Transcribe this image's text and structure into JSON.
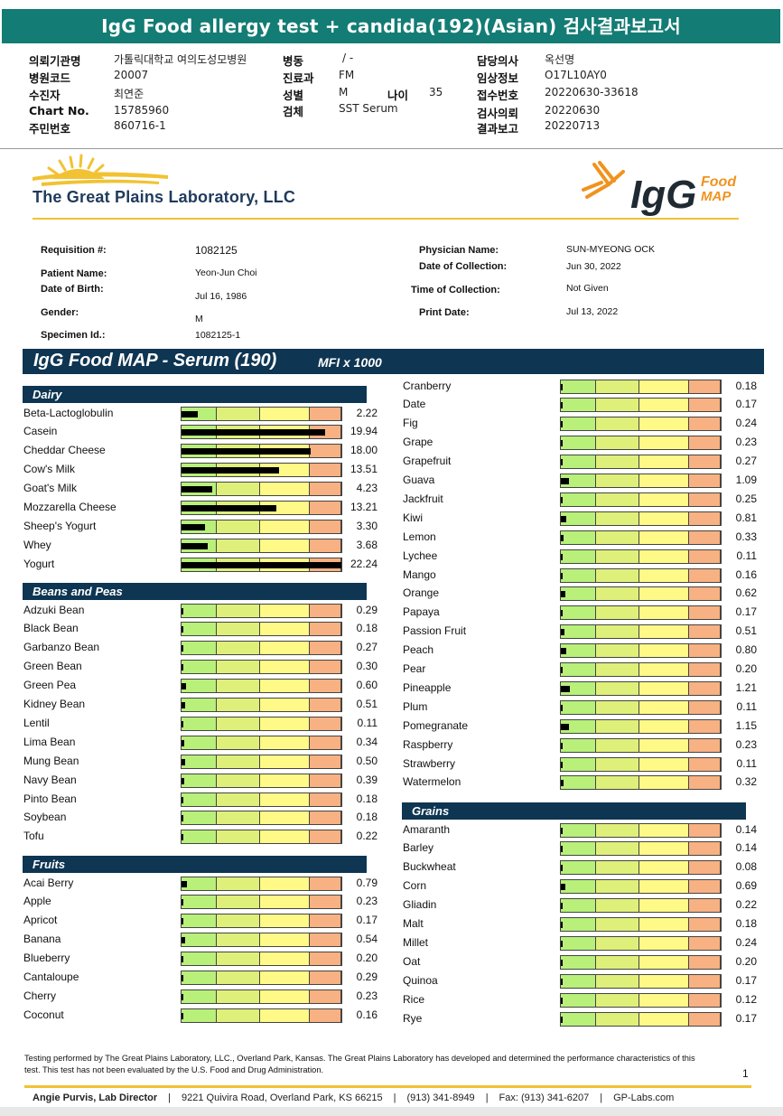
{
  "title": "IgG Food allergy test + candida(192)(Asian) 검사결과보고서",
  "header": {
    "left": [
      {
        "label": "의뢰기관명",
        "value": "가톨릭대학교 여의도성모병원"
      },
      {
        "label": "병원코드",
        "value": "20007"
      },
      {
        "label": "수진자",
        "value": "최연준"
      },
      {
        "label": "Chart No.",
        "value": "15785960"
      },
      {
        "label": "주민번호",
        "value": "860716-1"
      }
    ],
    "mid": [
      {
        "label": "병동",
        "value": "/ -"
      },
      {
        "label": "진료과",
        "value": "FM"
      },
      {
        "label": "성별",
        "value": "M"
      },
      {
        "label": "검체",
        "value": "SST Serum"
      }
    ],
    "age": {
      "label": "나이",
      "value": "35"
    },
    "right": [
      {
        "label": "담당의사",
        "value": "옥선명"
      },
      {
        "label": "임상정보",
        "value": "O17L10AY0"
      },
      {
        "label": "접수번호",
        "value": "20220630-33618"
      },
      {
        "label": "검사의뢰",
        "value": "20220630"
      },
      {
        "label": "결과보고",
        "value": "20220713"
      }
    ]
  },
  "lab": {
    "name": "The Great Plains Laboratory, LLC",
    "logo_right_main": "IgG",
    "logo_right_sub1": "Food",
    "logo_right_sub2": "MAP"
  },
  "patient": {
    "requisition_label": "Requisition #:",
    "requisition": "1082125",
    "patient_name_label": "Patient Name:",
    "patient_name": "Yeon-Jun Choi",
    "dob_label": "Date of Birth:",
    "dob": "Jul 16, 1986",
    "gender_label": "Gender:",
    "gender": "M",
    "specimen_label": "Specimen Id.:",
    "specimen": "1082125-1",
    "physician_label": "Physician Name:",
    "physician": "SUN-MYEONG OCK",
    "collection_date_label": "Date of Collection:",
    "collection_date": "Jun 30, 2022",
    "collection_time_label": "Time of Collection:",
    "collection_time": "Not Given",
    "print_date_label": "Print Date:",
    "print_date": "Jul 13, 2022"
  },
  "panel": {
    "title": "IgG Food MAP - Serum (190)",
    "unit": "MFI x 1000"
  },
  "chart_data": {
    "type": "bar",
    "title": "IgG Food MAP - Serum (190)",
    "unit": "MFI x 1000",
    "scale_max": 22.24,
    "sections": [
      {
        "name": "Dairy",
        "items": [
          {
            "name": "Beta-Lactoglobulin",
            "value": 2.22
          },
          {
            "name": "Casein",
            "value": 19.94
          },
          {
            "name": "Cheddar Cheese",
            "value": 18.0
          },
          {
            "name": "Cow's Milk",
            "value": 13.51
          },
          {
            "name": "Goat's Milk",
            "value": 4.23
          },
          {
            "name": "Mozzarella Cheese",
            "value": 13.21
          },
          {
            "name": "Sheep's Yogurt",
            "value": 3.3
          },
          {
            "name": "Whey",
            "value": 3.68
          },
          {
            "name": "Yogurt",
            "value": 22.24
          }
        ]
      },
      {
        "name": "Beans and Peas",
        "items": [
          {
            "name": "Adzuki Bean",
            "value": 0.29
          },
          {
            "name": "Black Bean",
            "value": 0.18
          },
          {
            "name": "Garbanzo Bean",
            "value": 0.27
          },
          {
            "name": "Green Bean",
            "value": 0.3
          },
          {
            "name": "Green Pea",
            "value": 0.6
          },
          {
            "name": "Kidney Bean",
            "value": 0.51
          },
          {
            "name": "Lentil",
            "value": 0.11
          },
          {
            "name": "Lima Bean",
            "value": 0.34
          },
          {
            "name": "Mung Bean",
            "value": 0.5
          },
          {
            "name": "Navy Bean",
            "value": 0.39
          },
          {
            "name": "Pinto Bean",
            "value": 0.18
          },
          {
            "name": "Soybean",
            "value": 0.18
          },
          {
            "name": "Tofu",
            "value": 0.22
          }
        ]
      },
      {
        "name": "Fruits",
        "items": [
          {
            "name": "Acai Berry",
            "value": 0.79
          },
          {
            "name": "Apple",
            "value": 0.23
          },
          {
            "name": "Apricot",
            "value": 0.17
          },
          {
            "name": "Banana",
            "value": 0.54
          },
          {
            "name": "Blueberry",
            "value": 0.2
          },
          {
            "name": "Cantaloupe",
            "value": 0.29
          },
          {
            "name": "Cherry",
            "value": 0.23
          },
          {
            "name": "Coconut",
            "value": 0.16
          },
          {
            "name": "Cranberry",
            "value": 0.18
          },
          {
            "name": "Date",
            "value": 0.17
          },
          {
            "name": "Fig",
            "value": 0.24
          },
          {
            "name": "Grape",
            "value": 0.23
          },
          {
            "name": "Grapefruit",
            "value": 0.27
          },
          {
            "name": "Guava",
            "value": 1.09
          },
          {
            "name": "Jackfruit",
            "value": 0.25
          },
          {
            "name": "Kiwi",
            "value": 0.81
          },
          {
            "name": "Lemon",
            "value": 0.33
          },
          {
            "name": "Lychee",
            "value": 0.11
          },
          {
            "name": "Mango",
            "value": 0.16
          },
          {
            "name": "Orange",
            "value": 0.62
          },
          {
            "name": "Papaya",
            "value": 0.17
          },
          {
            "name": "Passion Fruit",
            "value": 0.51
          },
          {
            "name": "Peach",
            "value": 0.8
          },
          {
            "name": "Pear",
            "value": 0.2
          },
          {
            "name": "Pineapple",
            "value": 1.21
          },
          {
            "name": "Plum",
            "value": 0.11
          },
          {
            "name": "Pomegranate",
            "value": 1.15
          },
          {
            "name": "Raspberry",
            "value": 0.23
          },
          {
            "name": "Strawberry",
            "value": 0.11
          },
          {
            "name": "Watermelon",
            "value": 0.32
          }
        ]
      },
      {
        "name": "Grains",
        "items": [
          {
            "name": "Amaranth",
            "value": 0.14
          },
          {
            "name": "Barley",
            "value": 0.14
          },
          {
            "name": "Buckwheat",
            "value": 0.08
          },
          {
            "name": "Corn",
            "value": 0.69
          },
          {
            "name": "Gliadin",
            "value": 0.22
          },
          {
            "name": "Malt",
            "value": 0.18
          },
          {
            "name": "Millet",
            "value": 0.24
          },
          {
            "name": "Oat",
            "value": 0.2
          },
          {
            "name": "Quinoa",
            "value": 0.17
          },
          {
            "name": "Rice",
            "value": 0.12
          },
          {
            "name": "Rye",
            "value": 0.17
          }
        ]
      }
    ]
  },
  "footer": {
    "disclaimer": "Testing performed by The Great Plains Laboratory, LLC., Overland Park, Kansas.  The Great Plains Laboratory has developed and determined the performance characteristics of this test.  This test has not been evaluated by the U.S.  Food and Drug Administration.",
    "page": "1",
    "director": "Angie Purvis, Lab Director",
    "address": "9221 Quivira Road, Overland Park, KS 66215",
    "phone": "(913) 341-8949",
    "fax": "Fax: (913) 341-6207",
    "web": "GP-Labs.com"
  }
}
